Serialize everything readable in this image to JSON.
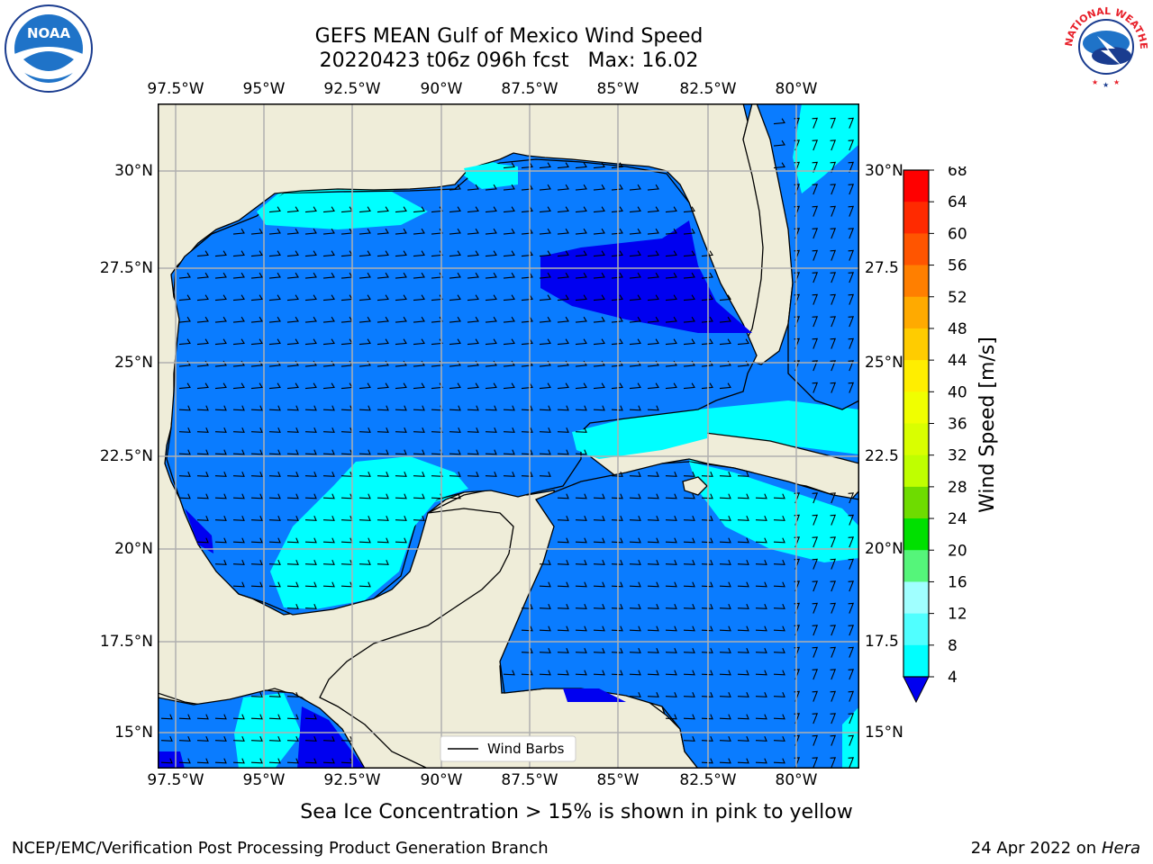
{
  "header": {
    "title_line1": "GEFS MEAN Gulf of Mexico Wind Speed",
    "title_line2": "20220423 t06z 096h fcst   Max: 16.02"
  },
  "logos": {
    "noara_text": "NOAA",
    "noaa_ring_text": "NATIONAL OCEANIC AND ATMOSPHERIC ADMINISTRATION · U.S. DEPARTMENT OF COMMERCE",
    "nws_ring_text": "NATIONAL WEATHER SERVICE"
  },
  "map": {
    "lon_labels": [
      "97.5°W",
      "95°W",
      "92.5°W",
      "90°W",
      "87.5°W",
      "85°W",
      "82.5°W",
      "80°W"
    ],
    "lat_labels_left": [
      "30°N",
      "27.5°N",
      "25°N",
      "22.5°N",
      "20°N",
      "17.5°N",
      "15°N"
    ],
    "lat_labels_right": [
      "30°N",
      "27.5",
      "25°N",
      "22.5",
      "20°N",
      "17.5",
      "15°N"
    ],
    "legend_label": "Wind Barbs",
    "colors": {
      "land": "#efedd9",
      "ocean_4_8": "#0a7cff",
      "ocean_8_12": "#00ffff",
      "ocean_lt4": "#0000f0",
      "grid": "#b0b0b0"
    }
  },
  "colorbar": {
    "label": "Wind Speed [m/s]",
    "ticks": [
      "68",
      "64",
      "60",
      "56",
      "52",
      "48",
      "44",
      "40",
      "36",
      "32",
      "28",
      "24",
      "20",
      "16",
      "12",
      "8",
      "4"
    ],
    "colors": [
      "#ff0000",
      "#ff2a00",
      "#ff5500",
      "#ff7f00",
      "#ffaa00",
      "#ffcc00",
      "#ffee00",
      "#f0ff00",
      "#d9ff00",
      "#bfff00",
      "#6edc00",
      "#00e000",
      "#55f57a",
      "#a0ffff",
      "#50ffff",
      "#00ffff",
      "#0a7cff"
    ],
    "under_color": "#0000f0"
  },
  "note": "Sea Ice Concentration > 15% is shown in pink to yellow",
  "footer": {
    "left": "NCEP/EMC/Verification Post Processing Product Generation Branch",
    "date": "24 Apr 2022 on ",
    "machine": "Hera"
  }
}
